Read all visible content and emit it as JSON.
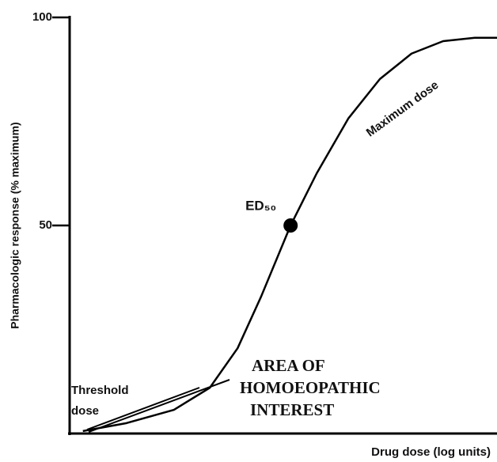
{
  "chart_data": {
    "type": "line",
    "x_label": "Drug dose (log units)",
    "y_label": "Pharmacologic response (% maximum)",
    "xlim": [
      0,
      10
    ],
    "ylim": [
      0,
      100
    ],
    "yticks": [
      50,
      100
    ],
    "series": [
      {
        "color": "#000000",
        "x": [
          0.31,
          1.33,
          2.44,
          3.28,
          3.93,
          4.48,
          5.17,
          5.78,
          6.52,
          7.26,
          8.0,
          8.74,
          9.48,
          10
        ],
        "values": [
          0.6,
          2.5,
          5.7,
          11.0,
          20.5,
          32.9,
          50,
          62.5,
          75.7,
          85.2,
          91.3,
          94.3,
          95.1,
          95.1
        ]
      }
    ],
    "points": [
      {
        "label": "ED₅₀",
        "x": 5.17,
        "y": 50
      }
    ],
    "annotations": [
      {
        "text": "Maximum dose"
      },
      {
        "lines": [
          "Threshold",
          "dose"
        ]
      },
      {
        "lines": [
          "AREA OF",
          "HOMOEOPATHIC",
          "INTEREST"
        ]
      }
    ]
  }
}
